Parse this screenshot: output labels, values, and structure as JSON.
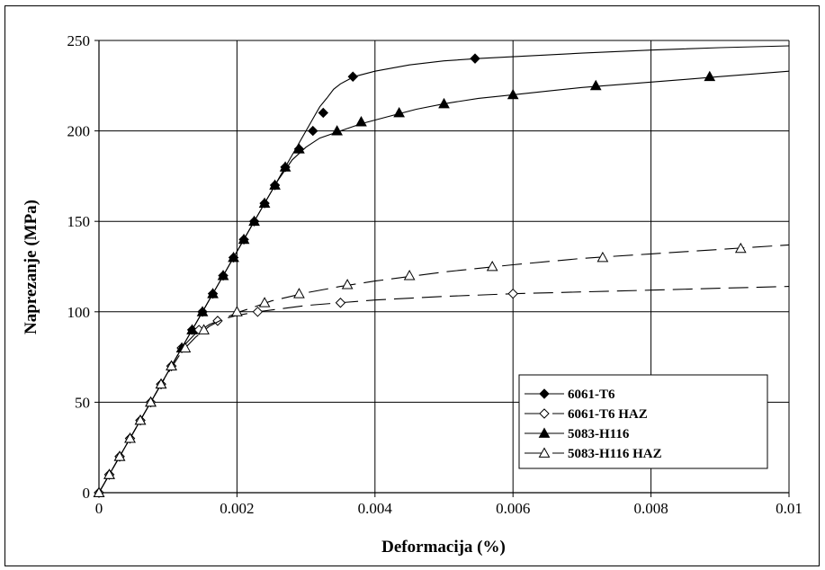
{
  "chart_data": {
    "type": "line",
    "xlabel": "Deformacija (%)",
    "ylabel": "Naprezanje (MPa)",
    "xlim": [
      0,
      0.01
    ],
    "ylim": [
      0,
      250
    ],
    "x_ticks": [
      "0",
      "0.002",
      "0.004",
      "0.006",
      "0.008",
      "0.01"
    ],
    "y_ticks": [
      "0",
      "50",
      "100",
      "150",
      "200",
      "250"
    ],
    "grid": true,
    "legend_position": "bottom-right",
    "series": [
      {
        "name": "6061-T6",
        "marker": "diamond-filled",
        "dash": "solid",
        "x": [
          0,
          0.00015,
          0.0003,
          0.00045,
          0.0006,
          0.00075,
          0.0009,
          0.00105,
          0.0012,
          0.00135,
          0.0015,
          0.00165,
          0.0018,
          0.00195,
          0.0021,
          0.00225,
          0.0024,
          0.00255,
          0.0027,
          0.0029,
          0.0031,
          0.00325,
          0.00368,
          0.00545
        ],
        "y": [
          0,
          10,
          20,
          30,
          40,
          50,
          60,
          70,
          80,
          90,
          100,
          110,
          120,
          130,
          140,
          150,
          160,
          170,
          180,
          190,
          200,
          210,
          230,
          240
        ],
        "curve_x": [
          0,
          0.0001,
          0.0002,
          0.0003,
          0.0004,
          0.0005,
          0.0006,
          0.0007,
          0.0008,
          0.0009,
          0.001,
          0.0011,
          0.0012,
          0.0013,
          0.0014,
          0.0015,
          0.0016,
          0.0017,
          0.0018,
          0.0019,
          0.002,
          0.0021,
          0.0022,
          0.0023,
          0.0024,
          0.0025,
          0.0026,
          0.0027,
          0.0028,
          0.0029,
          0.003,
          0.0031,
          0.0032,
          0.0033,
          0.0034,
          0.0035,
          0.0037,
          0.004,
          0.0045,
          0.005,
          0.0055,
          0.006,
          0.007,
          0.008,
          0.009,
          0.01
        ],
        "curve_y": [
          0,
          6.7,
          13.3,
          20,
          26.7,
          33.3,
          40,
          46.7,
          53.3,
          60,
          66.7,
          73.3,
          80,
          86.7,
          93.3,
          100,
          106.7,
          113.3,
          120,
          126.7,
          133.3,
          140,
          146.7,
          153.3,
          160,
          166.7,
          173.3,
          180,
          186.7,
          193.3,
          200,
          206.7,
          213.3,
          218,
          223,
          226,
          230,
          233,
          236.5,
          238.7,
          240,
          241,
          243,
          244.7,
          246,
          247
        ]
      },
      {
        "name": "6061-T6 HAZ",
        "marker": "diamond-open",
        "dash": "dashed",
        "x": [
          0,
          0.00015,
          0.0003,
          0.00045,
          0.0006,
          0.00075,
          0.0009,
          0.00105,
          0.0012,
          0.00145,
          0.00172,
          0.0023,
          0.0035,
          0.006
        ],
        "y": [
          0,
          10,
          20,
          30,
          40,
          50,
          60,
          70,
          80,
          90,
          95,
          100,
          105,
          110
        ],
        "curve_x": [
          0,
          0.0003,
          0.0006,
          0.0009,
          0.0012,
          0.0014,
          0.0016,
          0.0018,
          0.002,
          0.0023,
          0.0027,
          0.003,
          0.0035,
          0.004,
          0.005,
          0.006,
          0.007,
          0.008,
          0.009,
          0.01
        ],
        "curve_y": [
          0,
          20,
          40,
          60,
          80,
          88,
          93,
          96,
          98,
          100,
          102,
          103.5,
          105,
          106.5,
          108.5,
          110,
          111,
          112,
          113,
          114
        ]
      },
      {
        "name": "5083-H116",
        "marker": "triangle-filled",
        "dash": "solid",
        "x": [
          0,
          0.00015,
          0.0003,
          0.00045,
          0.0006,
          0.00075,
          0.0009,
          0.00105,
          0.0012,
          0.00135,
          0.0015,
          0.00165,
          0.0018,
          0.00195,
          0.0021,
          0.00225,
          0.0024,
          0.00255,
          0.0027,
          0.0029,
          0.00345,
          0.0038,
          0.00435,
          0.005,
          0.006,
          0.0072,
          0.00885
        ],
        "y": [
          0,
          10,
          20,
          30,
          40,
          50,
          60,
          70,
          80,
          90,
          100,
          110,
          120,
          130,
          140,
          150,
          160,
          170,
          180,
          190,
          200,
          205,
          210,
          215,
          220,
          225,
          230
        ],
        "curve_x": [
          0,
          0.0003,
          0.0006,
          0.0009,
          0.0012,
          0.0015,
          0.0018,
          0.0021,
          0.0024,
          0.0026,
          0.0028,
          0.003,
          0.0032,
          0.0035,
          0.0038,
          0.0042,
          0.0046,
          0.005,
          0.0055,
          0.006,
          0.0065,
          0.007,
          0.0075,
          0.008,
          0.0085,
          0.009,
          0.0095,
          0.01
        ],
        "curve_y": [
          0,
          20,
          40,
          60,
          80,
          100,
          120,
          140,
          160,
          173,
          184,
          191,
          196,
          200,
          204,
          208,
          212,
          215,
          218,
          220,
          222,
          224,
          225.5,
          227,
          228.5,
          230,
          231.5,
          233
        ]
      },
      {
        "name": "5083-H116 HAZ",
        "marker": "triangle-open",
        "dash": "dashed",
        "x": [
          0,
          0.00015,
          0.0003,
          0.00045,
          0.0006,
          0.00075,
          0.0009,
          0.00105,
          0.00125,
          0.00152,
          0.002,
          0.0024,
          0.0029,
          0.0036,
          0.0045,
          0.0057,
          0.0073,
          0.0093
        ],
        "y": [
          0,
          10,
          20,
          30,
          40,
          50,
          60,
          70,
          80,
          90,
          100,
          105,
          110,
          115,
          120,
          125,
          130,
          135
        ],
        "curve_x": [
          0,
          0.0003,
          0.0006,
          0.0009,
          0.0012,
          0.0014,
          0.0016,
          0.0018,
          0.002,
          0.0022,
          0.0025,
          0.003,
          0.0035,
          0.004,
          0.005,
          0.006,
          0.007,
          0.008,
          0.009,
          0.01
        ],
        "curve_y": [
          0,
          20,
          40,
          60,
          78,
          86,
          92,
          96,
          99.5,
          102,
          106,
          110.5,
          114,
          117,
          122,
          126,
          129.5,
          132,
          134.5,
          137
        ]
      }
    ]
  }
}
